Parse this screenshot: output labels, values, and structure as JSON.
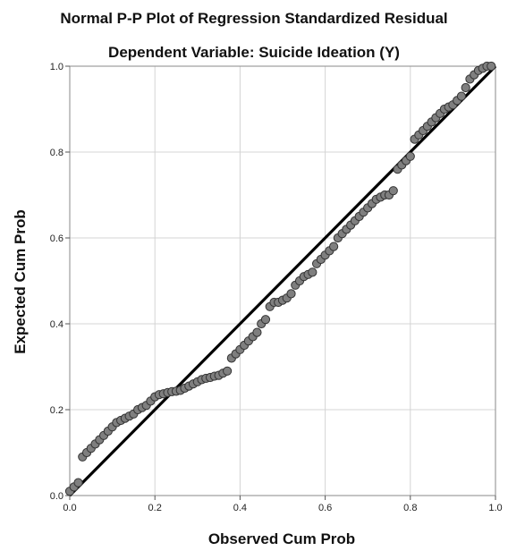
{
  "chart_data": {
    "type": "scatter",
    "title": "Normal P-P Plot of Regression Standardized Residual",
    "subtitle": "Dependent Variable: Suicide Ideation (Y)",
    "xlabel": "Observed Cum Prob",
    "ylabel": "Expected Cum Prob",
    "xlim": [
      0.0,
      1.0
    ],
    "ylim": [
      0.0,
      1.0
    ],
    "x_ticks": [
      "0.0",
      "0.2",
      "0.4",
      "0.6",
      "0.8",
      "1.0"
    ],
    "y_ticks": [
      "0.0",
      "0.2",
      "0.4",
      "0.6",
      "0.8",
      "1.0"
    ],
    "grid": true,
    "reference_line": {
      "from": [
        0,
        0
      ],
      "to": [
        1,
        1
      ],
      "color": "#000000"
    },
    "point_color": "#7f7f7f",
    "point_stroke": "#333333",
    "x": [
      0.0,
      0.01,
      0.02,
      0.03,
      0.04,
      0.05,
      0.06,
      0.07,
      0.08,
      0.09,
      0.1,
      0.11,
      0.12,
      0.13,
      0.14,
      0.15,
      0.16,
      0.17,
      0.18,
      0.19,
      0.2,
      0.21,
      0.22,
      0.23,
      0.24,
      0.25,
      0.26,
      0.27,
      0.28,
      0.29,
      0.3,
      0.31,
      0.32,
      0.33,
      0.34,
      0.35,
      0.36,
      0.37,
      0.38,
      0.39,
      0.4,
      0.41,
      0.42,
      0.43,
      0.44,
      0.45,
      0.46,
      0.47,
      0.48,
      0.49,
      0.5,
      0.51,
      0.52,
      0.53,
      0.54,
      0.55,
      0.56,
      0.57,
      0.58,
      0.59,
      0.6,
      0.61,
      0.62,
      0.63,
      0.64,
      0.65,
      0.66,
      0.67,
      0.68,
      0.69,
      0.7,
      0.71,
      0.72,
      0.73,
      0.74,
      0.75,
      0.76,
      0.77,
      0.78,
      0.79,
      0.8,
      0.81,
      0.82,
      0.83,
      0.84,
      0.85,
      0.86,
      0.87,
      0.88,
      0.89,
      0.9,
      0.91,
      0.92,
      0.93,
      0.94,
      0.95,
      0.96,
      0.97,
      0.98,
      0.99
    ],
    "y": [
      0.01,
      0.02,
      0.03,
      0.09,
      0.1,
      0.11,
      0.12,
      0.13,
      0.14,
      0.15,
      0.16,
      0.17,
      0.175,
      0.18,
      0.185,
      0.19,
      0.2,
      0.205,
      0.21,
      0.22,
      0.23,
      0.235,
      0.237,
      0.24,
      0.242,
      0.243,
      0.245,
      0.25,
      0.255,
      0.26,
      0.265,
      0.27,
      0.273,
      0.275,
      0.278,
      0.28,
      0.285,
      0.29,
      0.32,
      0.33,
      0.34,
      0.35,
      0.36,
      0.37,
      0.38,
      0.4,
      0.41,
      0.44,
      0.45,
      0.45,
      0.455,
      0.46,
      0.47,
      0.49,
      0.5,
      0.51,
      0.515,
      0.52,
      0.54,
      0.55,
      0.56,
      0.57,
      0.58,
      0.6,
      0.61,
      0.62,
      0.63,
      0.64,
      0.65,
      0.66,
      0.67,
      0.68,
      0.69,
      0.695,
      0.7,
      0.7,
      0.71,
      0.76,
      0.77,
      0.78,
      0.79,
      0.83,
      0.84,
      0.85,
      0.86,
      0.87,
      0.88,
      0.89,
      0.9,
      0.905,
      0.91,
      0.92,
      0.93,
      0.95,
      0.97,
      0.98,
      0.99,
      0.995,
      1.0,
      1.0
    ]
  }
}
